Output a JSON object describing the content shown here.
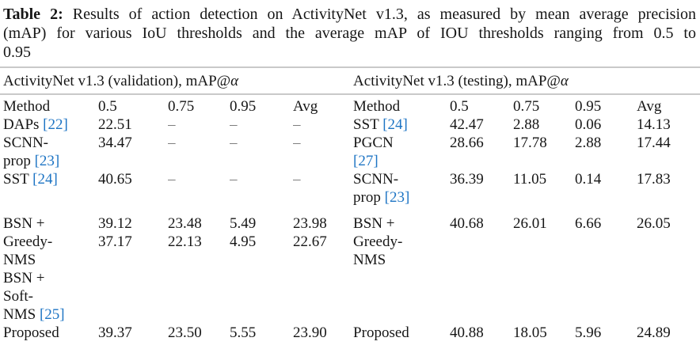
{
  "caption": {
    "label": "Table 2:",
    "line1": "Results of action detection on ActivityNet v1.3, as measured by mean average precision",
    "line2": "(mAP) for various IoU thresholds and the average mAP of IOU thresholds ranging from 0.5 to",
    "line3": "0.95"
  },
  "colors": {
    "citation_blue": "#1d74c4",
    "rule_gray": "#c9c9c9",
    "text_black": "#161616"
  },
  "table": {
    "sections": [
      {
        "title_prefix": "ActivityNet v1.3 (validation), mAP@",
        "alpha": "α"
      },
      {
        "title_prefix": "ActivityNet v1.3 (testing), mAP@",
        "alpha": "α"
      }
    ],
    "columns": [
      "Method",
      "0.5",
      "0.75",
      "0.95",
      "Avg",
      "Method",
      "0.5",
      "0.75",
      "0.95",
      "Avg"
    ],
    "rows": [
      [
        [
          {
            "text": "DAPs "
          },
          {
            "cite": "[22]"
          }
        ],
        [
          {
            "text": "22.51"
          }
        ],
        [
          {
            "text": "–"
          }
        ],
        [
          {
            "text": "–"
          }
        ],
        [
          {
            "text": "–"
          }
        ],
        [
          {
            "text": "SST "
          },
          {
            "cite": "[24]"
          }
        ],
        [
          {
            "text": "42.47"
          }
        ],
        [
          {
            "text": "2.88"
          }
        ],
        [
          {
            "text": "0.06"
          }
        ],
        [
          {
            "text": "14.13"
          }
        ]
      ],
      [
        [
          {
            "text": "SCNN-\nprop "
          },
          {
            "cite": "[23]"
          }
        ],
        [
          {
            "text": "34.47"
          }
        ],
        [
          {
            "text": "–"
          }
        ],
        [
          {
            "text": "–"
          }
        ],
        [
          {
            "text": "–"
          }
        ],
        [
          {
            "text": "PGCN\n"
          },
          {
            "cite": "[27]"
          }
        ],
        [
          {
            "text": "28.66"
          }
        ],
        [
          {
            "text": "17.78"
          }
        ],
        [
          {
            "text": "2.88"
          }
        ],
        [
          {
            "text": "17.44"
          }
        ]
      ],
      [
        [
          {
            "text": "SST "
          },
          {
            "cite": "[24]"
          }
        ],
        [
          {
            "text": "40.65"
          }
        ],
        [
          {
            "text": "–"
          }
        ],
        [
          {
            "text": "–"
          }
        ],
        [
          {
            "text": "–"
          }
        ],
        [
          {
            "text": "SCNN-\nprop "
          },
          {
            "cite": "[23]"
          }
        ],
        [
          {
            "text": "36.39"
          }
        ],
        [
          {
            "text": "11.05"
          }
        ],
        [
          {
            "text": "0.14"
          }
        ],
        [
          {
            "text": "17.83"
          }
        ]
      ],
      [
        [
          {
            "text": "BSN +\nGreedy-\nNMS\nBSN +\nSoft-\nNMS "
          },
          {
            "cite": "[25]"
          }
        ],
        [
          {
            "text": "39.12\n37.17"
          }
        ],
        [
          {
            "text": "23.48\n22.13"
          }
        ],
        [
          {
            "text": "5.49\n4.95"
          }
        ],
        [
          {
            "text": "23.98\n22.67"
          }
        ],
        [
          {
            "text": "BSN +\nGreedy-\nNMS"
          }
        ],
        [
          {
            "text": "40.68"
          }
        ],
        [
          {
            "text": "26.01"
          }
        ],
        [
          {
            "text": "6.66"
          }
        ],
        [
          {
            "text": "26.05"
          }
        ]
      ],
      [
        [
          {
            "text": "Proposed"
          }
        ],
        [
          {
            "text": "39.37"
          }
        ],
        [
          {
            "text": "23.50"
          }
        ],
        [
          {
            "text": "5.55"
          }
        ],
        [
          {
            "text": "23.90"
          }
        ],
        [
          {
            "text": "Proposed"
          }
        ],
        [
          {
            "text": "40.88"
          }
        ],
        [
          {
            "text": "18.05"
          }
        ],
        [
          {
            "text": "5.96"
          }
        ],
        [
          {
            "text": "24.89"
          }
        ]
      ]
    ]
  }
}
